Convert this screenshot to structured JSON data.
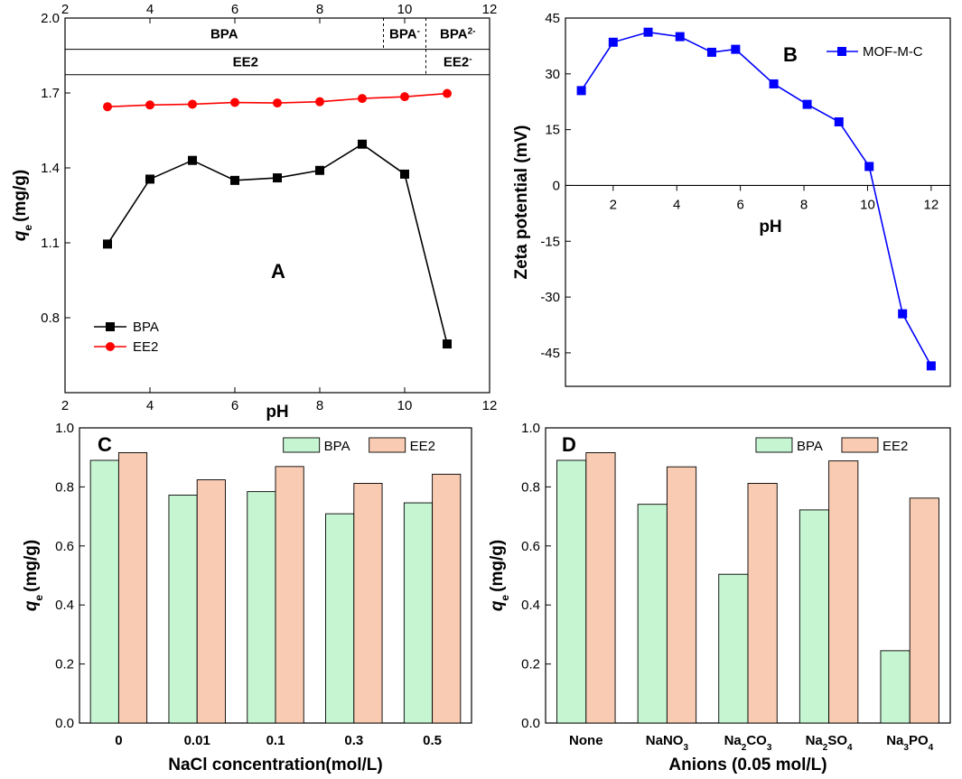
{
  "chart_data": [
    {
      "type": "line",
      "panel": "A",
      "xlabel": "pH",
      "ylabel_main": "q",
      "ylabel_sub": "e",
      "ylabel_rest": "(mg/g)",
      "xlim": [
        2,
        12
      ],
      "ylim": [
        0.5,
        2.0
      ],
      "xticks": [
        "2",
        "4",
        "6",
        "8",
        "10",
        "12"
      ],
      "yticks": [
        "0.8",
        "1.1",
        "1.4",
        "1.7",
        "2.0"
      ],
      "x": [
        3,
        4,
        5,
        6,
        7,
        8,
        9,
        10,
        11
      ],
      "series": [
        {
          "name": "BPA",
          "color": "#000000",
          "marker": "square",
          "values": [
            1.095,
            1.355,
            1.43,
            1.35,
            1.36,
            1.39,
            1.495,
            1.375,
            0.695
          ]
        },
        {
          "name": "EE2",
          "color": "#ff0000",
          "marker": "circle",
          "values": [
            1.645,
            1.652,
            1.655,
            1.662,
            1.66,
            1.665,
            1.678,
            1.685,
            1.698
          ]
        }
      ],
      "species_rows": [
        {
          "cells": [
            {
              "label": "BPA",
              "sup": "",
              "from": 2,
              "to": 9.5
            },
            {
              "label": "BPA",
              "sup": "-",
              "from": 9.5,
              "to": 10.5
            },
            {
              "label": "BPA",
              "sup": "2-",
              "from": 10.5,
              "to": 12
            }
          ]
        },
        {
          "cells": [
            {
              "label": "EE2",
              "sup": "",
              "from": 2,
              "to": 10.5
            },
            {
              "label": "EE2",
              "sup": "-",
              "from": 10.5,
              "to": 12
            }
          ]
        }
      ],
      "legend": [
        "BPA",
        "EE2"
      ]
    },
    {
      "type": "line",
      "panel": "B",
      "xlabel": "pH",
      "ylabel": "Zeta potential (mV)",
      "xlim": [
        0.5,
        12.6
      ],
      "ylim": [
        -54,
        45
      ],
      "xticks": [
        "2",
        "4",
        "6",
        "8",
        "10",
        "12"
      ],
      "yticks": [
        "-45",
        "-30",
        "-15",
        "0",
        "15",
        "30",
        "45"
      ],
      "series": [
        {
          "name": "MOF-M-C",
          "color": "#0000ff",
          "marker": "square",
          "x": [
            1,
            2,
            3.1,
            4.1,
            5.1,
            5.85,
            7.05,
            8.1,
            9.1,
            10.05,
            11.1,
            12
          ],
          "values": [
            25.5,
            38.5,
            41.2,
            40,
            35.8,
            36.6,
            27.3,
            21.8,
            17.1,
            5.1,
            -34.5,
            -48.5
          ]
        }
      ],
      "legend": [
        "MOF-M-C"
      ]
    },
    {
      "type": "bar",
      "panel": "C",
      "xlabel": "NaCl concentration(mol/L)",
      "ylabel_main": "q",
      "ylabel_sub": "e",
      "ylabel_rest": "(mg/g)",
      "ylim": [
        0,
        1.0
      ],
      "yticks": [
        "0.0",
        "0.2",
        "0.4",
        "0.6",
        "0.8",
        "1.0"
      ],
      "categories": [
        "0",
        "0.01",
        "0.1",
        "0.3",
        "0.5"
      ],
      "series": [
        {
          "name": "BPA",
          "color": "#c6f5d2",
          "values": [
            0.89,
            0.772,
            0.784,
            0.709,
            0.746
          ]
        },
        {
          "name": "EE2",
          "color": "#f9cbb2",
          "values": [
            0.916,
            0.824,
            0.869,
            0.812,
            0.843
          ]
        }
      ],
      "legend": [
        "BPA",
        "EE2"
      ]
    },
    {
      "type": "bar",
      "panel": "D",
      "xlabel": "Anions (0.05 mol/L)",
      "ylabel_main": "q",
      "ylabel_sub": "e",
      "ylabel_rest": "(mg/g)",
      "ylim": [
        0,
        1.0
      ],
      "yticks": [
        "0.0",
        "0.2",
        "0.4",
        "0.6",
        "0.8",
        "1.0"
      ],
      "categories": [
        "None",
        "NaNO3",
        "Na2CO3",
        "Na2SO4",
        "Na3PO4"
      ],
      "category_parts": [
        [
          [
            "None",
            ""
          ]
        ],
        [
          [
            "NaNO",
            ""
          ],
          [
            "3",
            "sub"
          ]
        ],
        [
          [
            "Na",
            ""
          ],
          [
            "2",
            "sub"
          ],
          [
            "CO",
            ""
          ],
          [
            "3",
            "sub"
          ]
        ],
        [
          [
            "Na",
            ""
          ],
          [
            "2",
            "sub"
          ],
          [
            "SO",
            ""
          ],
          [
            "4",
            "sub"
          ]
        ],
        [
          [
            "Na",
            ""
          ],
          [
            "3",
            "sub"
          ],
          [
            "PO",
            ""
          ],
          [
            "4",
            "sub"
          ]
        ]
      ],
      "series": [
        {
          "name": "BPA",
          "color": "#c6f5d2",
          "values": [
            0.89,
            0.741,
            0.504,
            0.722,
            0.245
          ]
        },
        {
          "name": "EE2",
          "color": "#f9cbb2",
          "values": [
            0.916,
            0.868,
            0.812,
            0.888,
            0.762
          ]
        }
      ],
      "legend": [
        "BPA",
        "EE2"
      ]
    }
  ]
}
